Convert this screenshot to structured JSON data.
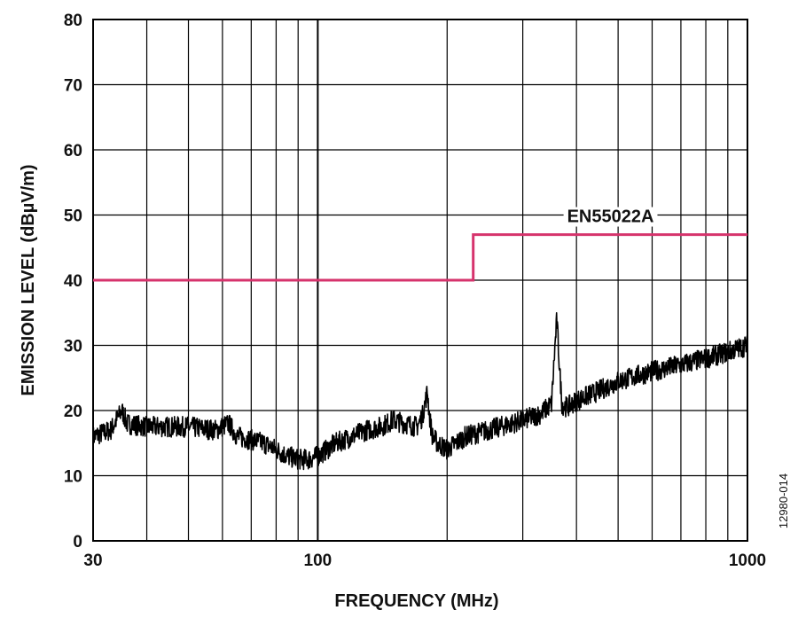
{
  "chart_data": {
    "type": "line",
    "xlabel": "FREQUENCY (MHz)",
    "ylabel": "EMISSION LEVEL (dBµV/m)",
    "x_scale": "log",
    "xlim": [
      30,
      1000
    ],
    "ylim": [
      0,
      80
    ],
    "x_ticks": [
      30,
      100,
      1000
    ],
    "y_ticks": [
      0,
      10,
      20,
      30,
      40,
      50,
      60,
      70,
      80
    ],
    "grid": true,
    "figure_id": "12980-014",
    "colors": {
      "limit": "#d6336c",
      "emission": "#000000",
      "grid": "#000000"
    },
    "series": [
      {
        "name": "EN55022A",
        "role": "limit",
        "x": [
          30,
          230,
          230,
          1000
        ],
        "y": [
          40,
          40,
          47,
          47
        ]
      },
      {
        "name": "",
        "role": "measured",
        "x": [
          30,
          33,
          35,
          36,
          40,
          50,
          58,
          62,
          65,
          70,
          75,
          80,
          85,
          90,
          95,
          100,
          110,
          120,
          130,
          140,
          150,
          160,
          170,
          175,
          180,
          182,
          185,
          190,
          200,
          210,
          220,
          250,
          300,
          330,
          350,
          355,
          360,
          365,
          370,
          380,
          400,
          450,
          500,
          600,
          700,
          800,
          900,
          1000
        ],
        "y": [
          16,
          17,
          20,
          18,
          17.5,
          17.5,
          17,
          18,
          16,
          15.5,
          15,
          14,
          13,
          12.5,
          12.5,
          13,
          15,
          16,
          17,
          17.5,
          18.5,
          18,
          17.5,
          19,
          23,
          19,
          16,
          15,
          14,
          15,
          16,
          17,
          18.5,
          19.5,
          21,
          28,
          34,
          27,
          21,
          20.5,
          21.5,
          23,
          24.5,
          26,
          27,
          28,
          29,
          30
        ]
      }
    ]
  }
}
